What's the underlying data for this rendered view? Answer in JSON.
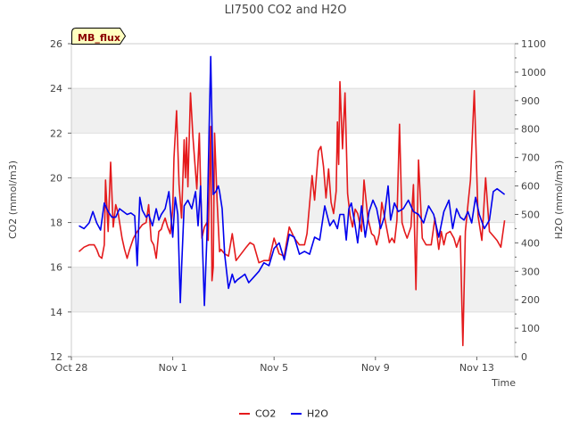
{
  "chart_data": {
    "type": "line",
    "title": "LI7500 CO2 and H2O",
    "xlabel": "Time",
    "ylabel_left": "CO2 (mmol/m3)",
    "ylabel_right": "H2O (mmol/m3)",
    "xlim": [
      0,
      17.5
    ],
    "ylim_left": [
      12,
      26
    ],
    "ylim_right": [
      0,
      1100
    ],
    "x_unit": "days since Oct 28",
    "x_ticks": [
      {
        "value": 0,
        "label": "Oct 28"
      },
      {
        "value": 4,
        "label": "Nov 1"
      },
      {
        "value": 8,
        "label": "Nov 5"
      },
      {
        "value": 12,
        "label": "Nov 9"
      },
      {
        "value": 16,
        "label": "Nov 13"
      }
    ],
    "y_ticks_left": [
      12,
      14,
      16,
      18,
      20,
      22,
      24,
      26
    ],
    "y_ticks_right": [
      0,
      100,
      200,
      300,
      400,
      500,
      600,
      700,
      800,
      900,
      1000,
      1100
    ],
    "grid": true,
    "banded_background": true,
    "legend_position": "bottom-center",
    "badge": {
      "label": "MB_flux",
      "bg": "#ffffc0",
      "border": "#000000",
      "color": "#8b0000"
    },
    "series": [
      {
        "name": "CO2",
        "axis": "left",
        "color": "#e41a1c",
        "x": [
          0.3,
          0.5,
          0.7,
          0.9,
          1.0,
          1.1,
          1.2,
          1.3,
          1.35,
          1.45,
          1.55,
          1.65,
          1.75,
          1.85,
          2.0,
          2.1,
          2.2,
          2.3,
          2.45,
          2.6,
          2.8,
          2.95,
          3.05,
          3.15,
          3.25,
          3.35,
          3.45,
          3.55,
          3.6,
          3.7,
          3.8,
          3.9,
          4.0,
          4.05,
          4.15,
          4.25,
          4.35,
          4.45,
          4.5,
          4.55,
          4.6,
          4.7,
          4.8,
          4.95,
          5.05,
          5.15,
          5.25,
          5.35,
          5.4,
          5.5,
          5.55,
          5.6,
          5.65,
          5.75,
          5.85,
          5.9,
          6.05,
          6.2,
          6.35,
          6.5,
          6.7,
          6.9,
          7.05,
          7.2,
          7.4,
          7.6,
          7.8,
          8.0,
          8.2,
          8.4,
          8.6,
          8.8,
          9.0,
          9.2,
          9.3,
          9.5,
          9.6,
          9.75,
          9.85,
          9.95,
          10.05,
          10.15,
          10.25,
          10.35,
          10.45,
          10.5,
          10.55,
          10.6,
          10.7,
          10.8,
          10.9,
          11.0,
          11.1,
          11.2,
          11.3,
          11.45,
          11.55,
          11.7,
          11.85,
          11.95,
          12.05,
          12.15,
          12.25,
          12.4,
          12.55,
          12.65,
          12.75,
          12.85,
          12.95,
          13.05,
          13.15,
          13.25,
          13.4,
          13.5,
          13.6,
          13.7,
          13.85,
          14.0,
          14.2,
          14.35,
          14.5,
          14.6,
          14.7,
          14.8,
          14.95,
          15.1,
          15.2,
          15.35,
          15.45,
          15.55,
          15.65,
          15.75,
          15.9,
          16.05,
          16.2,
          16.35,
          16.5,
          16.65,
          16.8,
          16.95,
          17.1
        ],
        "y": [
          16.7,
          16.9,
          17.0,
          17.0,
          16.8,
          16.5,
          16.4,
          17.0,
          19.9,
          17.6,
          20.7,
          17.8,
          18.8,
          18.4,
          17.3,
          16.8,
          16.4,
          16.8,
          17.3,
          17.6,
          17.9,
          18.0,
          18.8,
          17.2,
          17.0,
          16.4,
          17.6,
          17.7,
          17.9,
          18.2,
          17.8,
          17.5,
          18.6,
          20.9,
          23.0,
          19.7,
          18.2,
          21.7,
          20.0,
          21.8,
          19.6,
          23.8,
          21.8,
          19.5,
          22.0,
          17.3,
          17.8,
          18.0,
          17.2,
          22.3,
          15.4,
          16.0,
          22.0,
          19.0,
          16.7,
          16.8,
          16.6,
          16.5,
          17.5,
          16.3,
          16.6,
          16.9,
          17.1,
          17.0,
          16.2,
          16.3,
          16.3,
          17.3,
          16.6,
          16.5,
          17.8,
          17.3,
          17.0,
          17.0,
          17.5,
          20.1,
          19.0,
          21.2,
          21.4,
          20.5,
          19.1,
          20.4,
          18.9,
          18.4,
          19.4,
          22.5,
          20.6,
          24.3,
          21.3,
          23.8,
          19.3,
          18.3,
          17.8,
          18.6,
          18.4,
          17.6,
          19.9,
          18.2,
          17.5,
          17.4,
          17.0,
          17.5,
          18.9,
          18.0,
          17.1,
          17.3,
          17.1,
          18.1,
          22.4,
          18.0,
          17.6,
          17.3,
          17.8,
          19.7,
          15.0,
          20.8,
          17.3,
          17.0,
          17.0,
          18.2,
          16.8,
          17.6,
          17.0,
          17.5,
          17.6,
          17.3,
          16.9,
          17.4,
          12.5,
          17.6,
          18.8,
          19.9,
          23.9,
          18.3,
          17.2,
          20.0,
          17.6,
          17.4,
          17.2,
          16.9,
          18.1
        ]
      },
      {
        "name": "H2O",
        "axis": "right",
        "color": "#0000ee",
        "x": [
          0.3,
          0.5,
          0.7,
          0.85,
          1.0,
          1.15,
          1.3,
          1.45,
          1.6,
          1.75,
          1.9,
          2.05,
          2.2,
          2.35,
          2.5,
          2.6,
          2.7,
          2.8,
          2.95,
          3.05,
          3.2,
          3.35,
          3.45,
          3.55,
          3.7,
          3.85,
          4.0,
          4.1,
          4.2,
          4.3,
          4.35,
          4.45,
          4.6,
          4.75,
          4.9,
          5.0,
          5.1,
          5.25,
          5.35,
          5.45,
          5.5,
          5.6,
          5.7,
          5.8,
          5.85,
          5.95,
          6.05,
          6.2,
          6.35,
          6.45,
          6.55,
          6.7,
          6.85,
          7.0,
          7.2,
          7.4,
          7.6,
          7.8,
          8.0,
          8.2,
          8.4,
          8.6,
          8.8,
          9.0,
          9.2,
          9.4,
          9.6,
          9.8,
          10.0,
          10.2,
          10.35,
          10.5,
          10.6,
          10.75,
          10.85,
          10.95,
          11.05,
          11.2,
          11.3,
          11.45,
          11.6,
          11.75,
          11.9,
          12.05,
          12.2,
          12.35,
          12.5,
          12.6,
          12.75,
          12.9,
          13.1,
          13.3,
          13.5,
          13.7,
          13.9,
          14.1,
          14.3,
          14.5,
          14.7,
          14.9,
          15.05,
          15.2,
          15.35,
          15.5,
          15.65,
          15.8,
          15.95,
          16.1,
          16.3,
          16.5,
          16.65,
          16.8,
          16.95,
          17.1
        ],
        "y": [
          460,
          450,
          470,
          510,
          470,
          445,
          540,
          510,
          490,
          490,
          520,
          510,
          500,
          505,
          495,
          320,
          560,
          515,
          490,
          500,
          460,
          520,
          480,
          500,
          520,
          580,
          420,
          560,
          500,
          190,
          310,
          530,
          550,
          520,
          580,
          460,
          600,
          180,
          420,
          860,
          1055,
          570,
          580,
          600,
          580,
          520,
          360,
          240,
          290,
          260,
          270,
          280,
          290,
          260,
          280,
          300,
          330,
          320,
          380,
          400,
          340,
          430,
          420,
          360,
          370,
          360,
          420,
          410,
          530,
          460,
          480,
          450,
          500,
          500,
          410,
          520,
          540,
          460,
          400,
          530,
          420,
          510,
          550,
          520,
          450,
          490,
          600,
          480,
          540,
          510,
          520,
          550,
          510,
          500,
          470,
          530,
          500,
          420,
          510,
          550,
          450,
          520,
          490,
          480,
          510,
          470,
          560,
          500,
          450,
          480,
          580,
          590,
          580,
          570
        ]
      }
    ]
  }
}
